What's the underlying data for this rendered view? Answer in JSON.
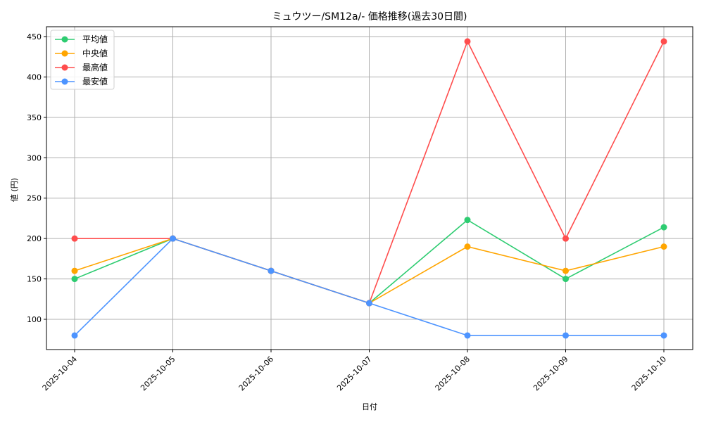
{
  "chart_data": {
    "type": "line",
    "title": "ミュウツー/SM12a/- 価格推移(過去30日間)",
    "xlabel": "日付",
    "ylabel": "値 (円)",
    "categories": [
      "2025-10-04",
      "2025-10-05",
      "2025-10-06",
      "2025-10-07",
      "2025-10-08",
      "2025-10-09",
      "2025-10-10"
    ],
    "ylim": [
      62,
      462
    ],
    "yticks": [
      100,
      150,
      200,
      250,
      300,
      350,
      400,
      450
    ],
    "grid": true,
    "legend_position": "upper left",
    "series": [
      {
        "name": "平均値",
        "color": "#2ecc71",
        "values": [
          150,
          200,
          160,
          120,
          223,
          150,
          214
        ]
      },
      {
        "name": "中央値",
        "color": "#ffa500",
        "values": [
          160,
          200,
          160,
          120,
          190,
          160,
          190
        ]
      },
      {
        "name": "最高値",
        "color": "#ff4d4d",
        "values": [
          200,
          200,
          160,
          120,
          444,
          200,
          444
        ]
      },
      {
        "name": "最安値",
        "color": "#4d94ff",
        "values": [
          80,
          200,
          160,
          120,
          80,
          80,
          80
        ]
      }
    ]
  }
}
